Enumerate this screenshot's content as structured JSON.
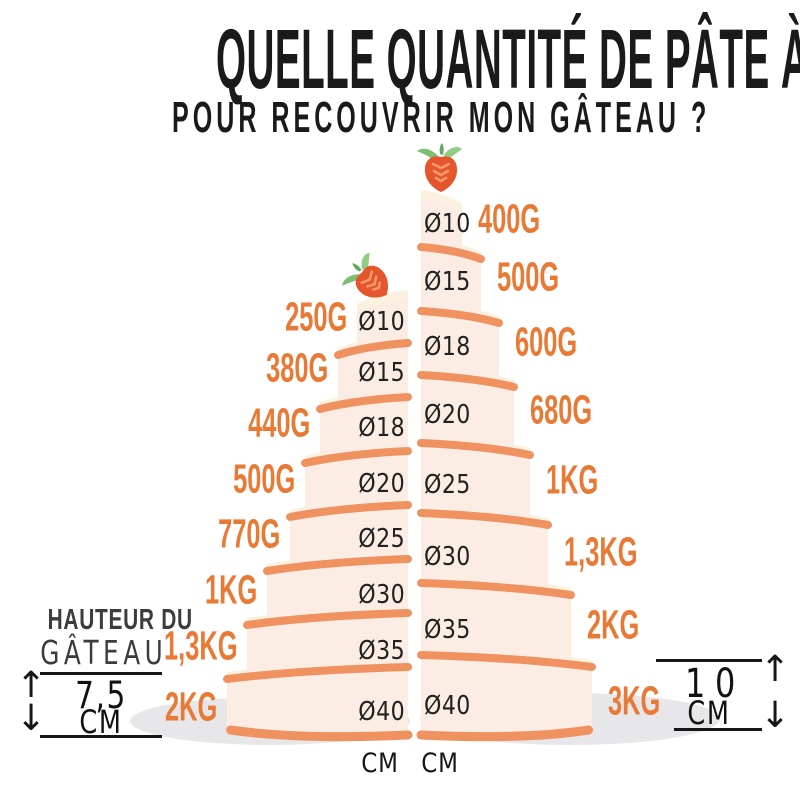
{
  "title": {
    "line1": "QUELLE QUANTITÉ DE PÂTE À SUCRE",
    "line2": "POUR RECOUVRIR MON GÂTEAU ?"
  },
  "legend_left": {
    "line1": "HAUTEUR DU",
    "line2": "GÂTEAU",
    "value": "7,5",
    "unit": "CM"
  },
  "legend_right": {
    "value": "10",
    "unit": "CM"
  },
  "icons": {
    "arrow_up": "↑",
    "arrow_down": "↓",
    "topper": "strawberry-icon"
  },
  "cakes": {
    "left": {
      "height_cm": "7,5",
      "axis_unit": "CM",
      "tiers": [
        {
          "diameter": "Ø10",
          "weight": "250G"
        },
        {
          "diameter": "Ø15",
          "weight": "380G"
        },
        {
          "diameter": "Ø18",
          "weight": "440G"
        },
        {
          "diameter": "Ø20",
          "weight": "500G"
        },
        {
          "diameter": "Ø25",
          "weight": "770G"
        },
        {
          "diameter": "Ø30",
          "weight": "1KG"
        },
        {
          "diameter": "Ø35",
          "weight": "1,3KG"
        },
        {
          "diameter": "Ø40",
          "weight": "2KG"
        }
      ]
    },
    "right": {
      "height_cm": "10",
      "axis_unit": "CM",
      "tiers": [
        {
          "diameter": "Ø10",
          "weight": "400G"
        },
        {
          "diameter": "Ø15",
          "weight": "500G"
        },
        {
          "diameter": "Ø18",
          "weight": "600G"
        },
        {
          "diameter": "Ø20",
          "weight": "680G"
        },
        {
          "diameter": "Ø25",
          "weight": "1KG"
        },
        {
          "diameter": "Ø30",
          "weight": "1,3KG"
        },
        {
          "diameter": "Ø35",
          "weight": "2KG"
        },
        {
          "diameter": "Ø40",
          "weight": "3KG"
        }
      ]
    }
  },
  "colors": {
    "accent": "#E87A35",
    "band": "#F09160",
    "cake_body": "#FBEDE3",
    "cake_face": "#FCF1DF",
    "shadow": "#E7E6E8",
    "ink": "#1A1A1A",
    "berry_red": "#E6562C",
    "berry_shine": "#F39B66",
    "berry_leaf1": "#7DBE72",
    "berry_leaf2": "#8FCD83",
    "berry_leaf3": "#64A95F"
  }
}
